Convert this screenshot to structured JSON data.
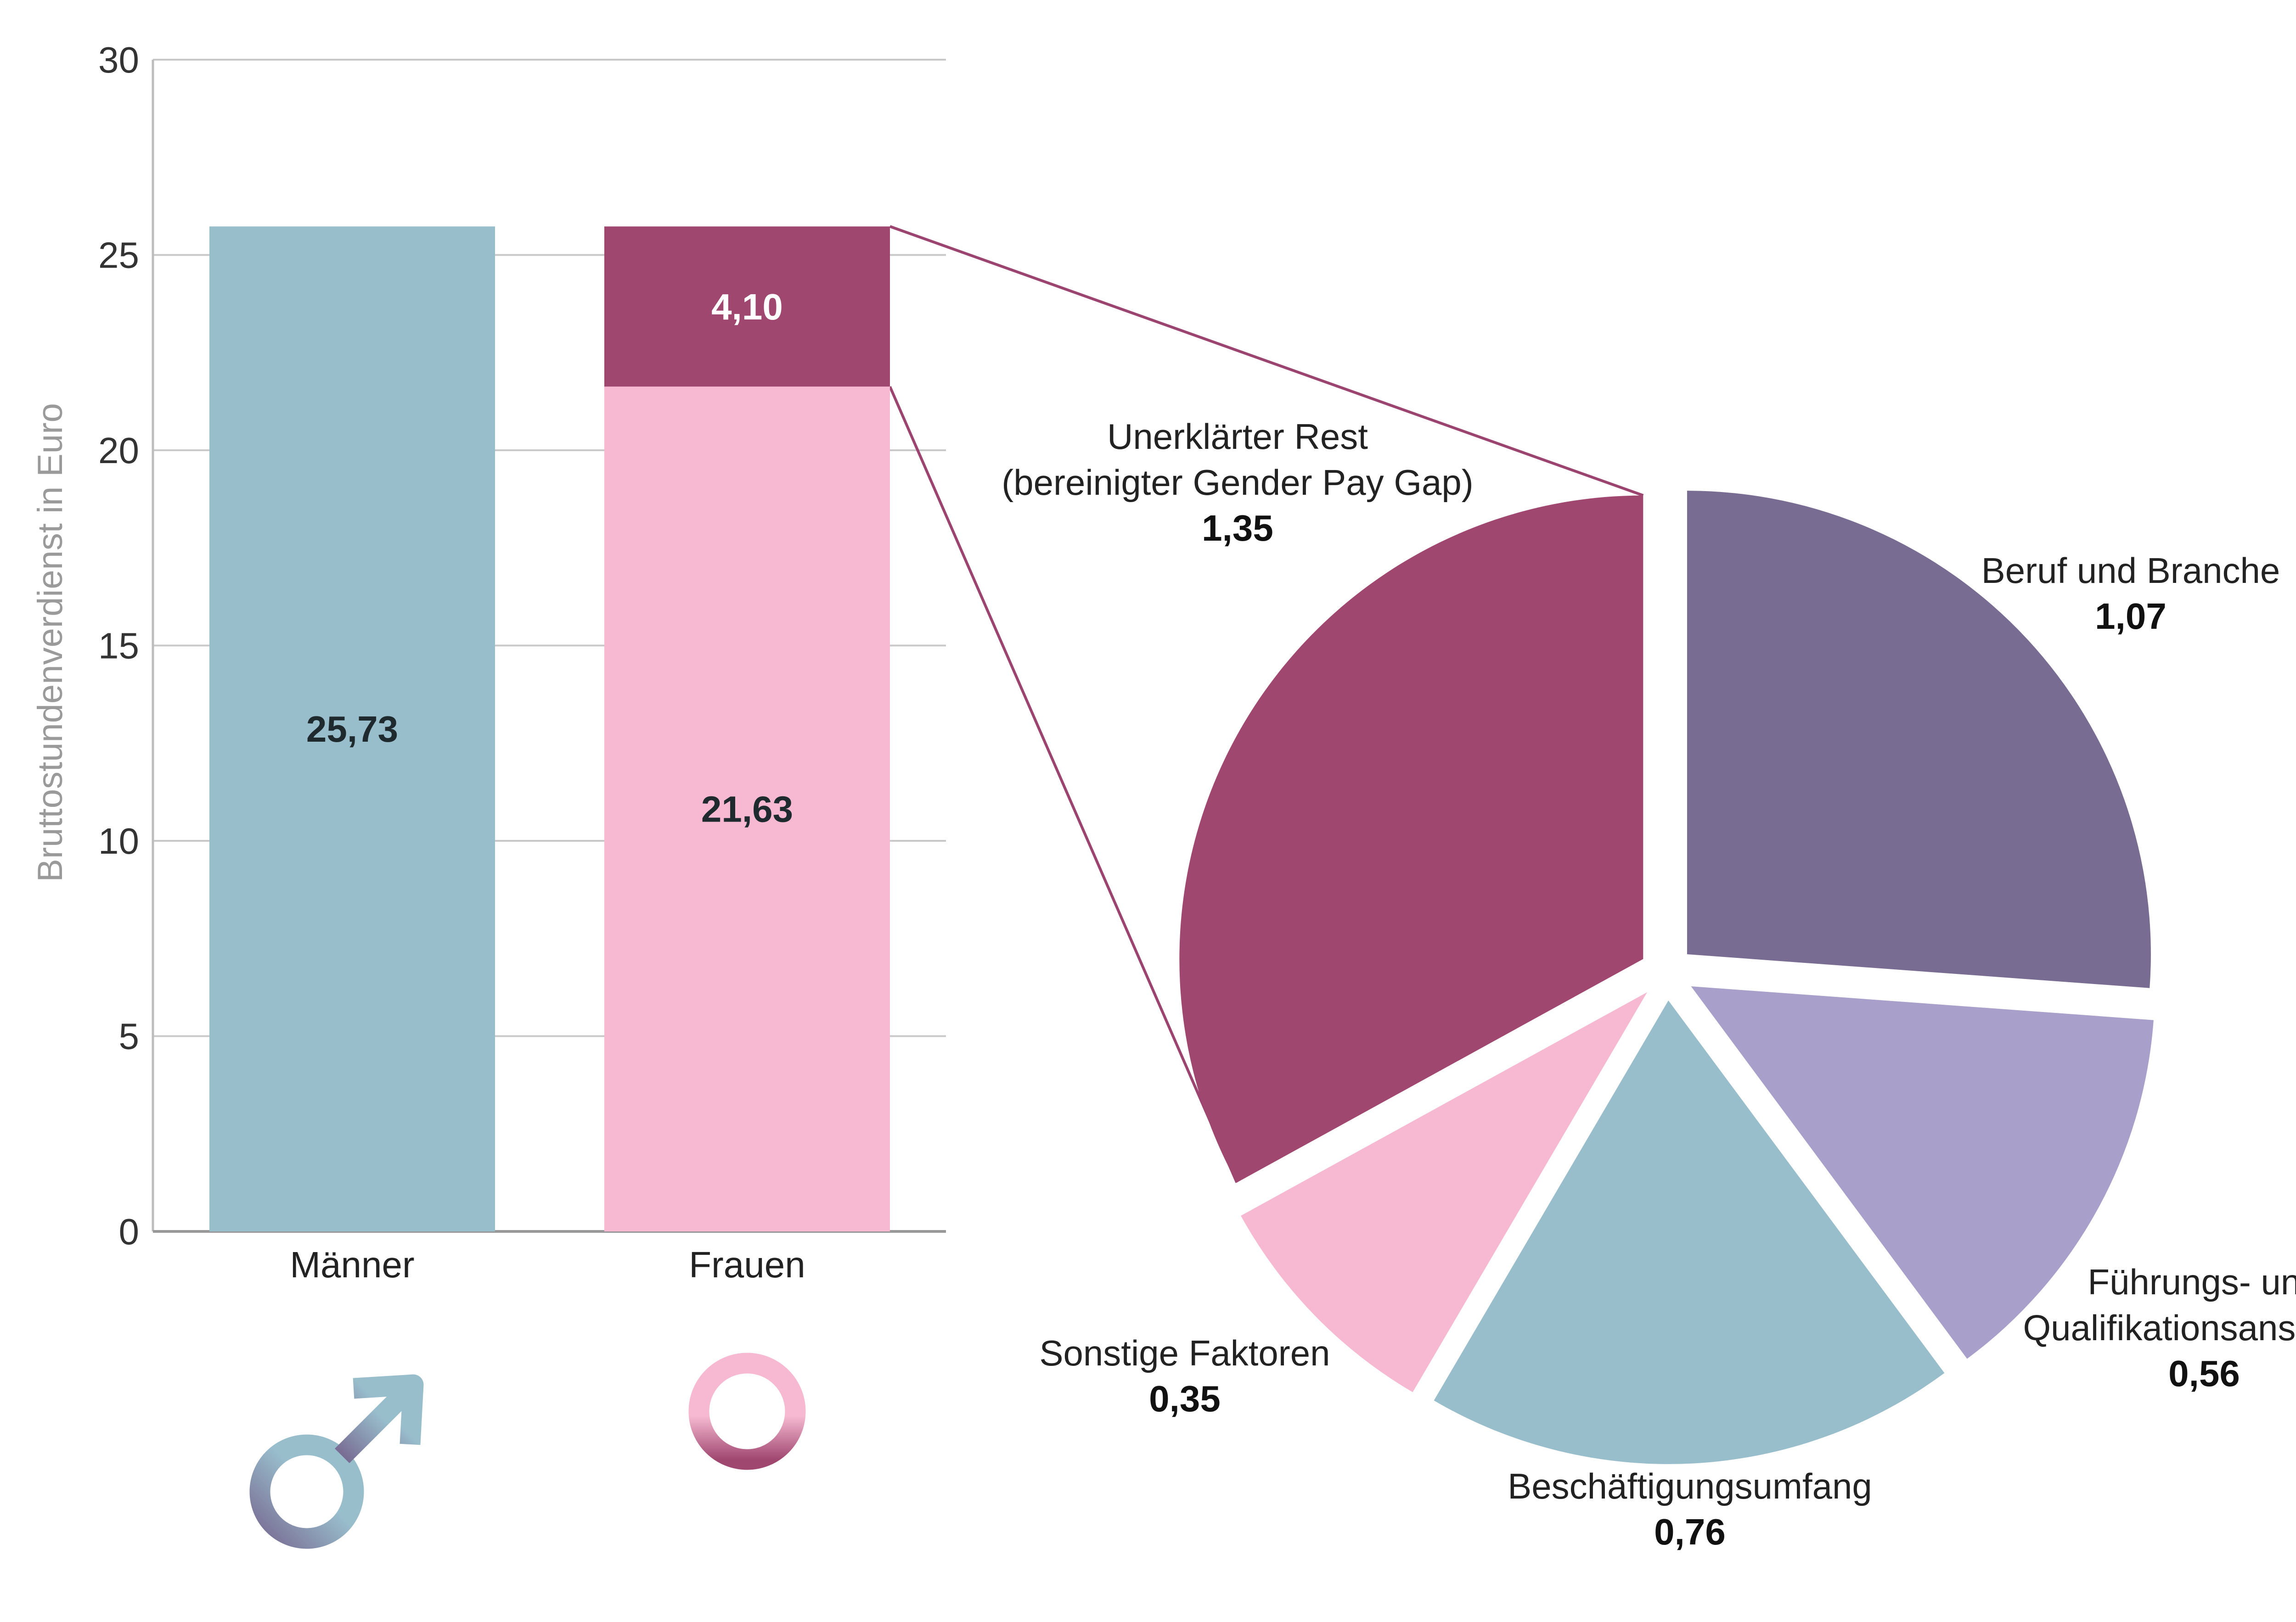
{
  "chart_data": [
    {
      "type": "bar",
      "stacked": true,
      "ylabel": "Bruttostundenverdienst in Euro",
      "ylim": [
        0,
        30
      ],
      "yticks": [
        "0",
        "5",
        "10",
        "15",
        "20",
        "25",
        "30"
      ],
      "grid": true,
      "categories": [
        "Männer",
        "Frauen"
      ],
      "series": [
        {
          "name": "Männer",
          "values": [
            25.73,
            0
          ],
          "labels": [
            "25,73",
            ""
          ],
          "color": "#98bdcb",
          "label_color": "#1f2a2e"
        },
        {
          "name": "Frauen",
          "values": [
            0,
            21.63
          ],
          "labels": [
            "",
            "21,63"
          ],
          "color": "#f6b9d1",
          "label_color": "#1f2a2e"
        },
        {
          "name": "Gender Pay Gap",
          "values": [
            0,
            4.1
          ],
          "labels": [
            "",
            "4,10"
          ],
          "color": "#a04770",
          "label_color": "#ffffff"
        }
      ],
      "icons": [
        "male-symbol-icon",
        "female-symbol-icon"
      ]
    },
    {
      "type": "pie",
      "exploded": true,
      "slices": [
        {
          "label_lines": [
            "Beruf und Branche"
          ],
          "value": 1.07,
          "value_label": "1,07",
          "color": "#786c93"
        },
        {
          "label_lines": [
            "Führungs- und",
            "Qualifikationsanspruch"
          ],
          "value": 0.56,
          "value_label": "0,56",
          "color": "#a89fca"
        },
        {
          "label_lines": [
            "Beschäftigungsumfang"
          ],
          "value": 0.76,
          "value_label": "0,76",
          "color": "#98bdcb"
        },
        {
          "label_lines": [
            "Sonstige Faktoren"
          ],
          "value": 0.35,
          "value_label": "0,35",
          "color": "#f6b9d1"
        },
        {
          "label_lines": [
            "Unerklärter Rest",
            "(bereinigter Gender Pay Gap)"
          ],
          "value": 1.35,
          "value_label": "1,35",
          "color": "#a04770"
        }
      ],
      "connector_color": "#9c4470"
    }
  ]
}
